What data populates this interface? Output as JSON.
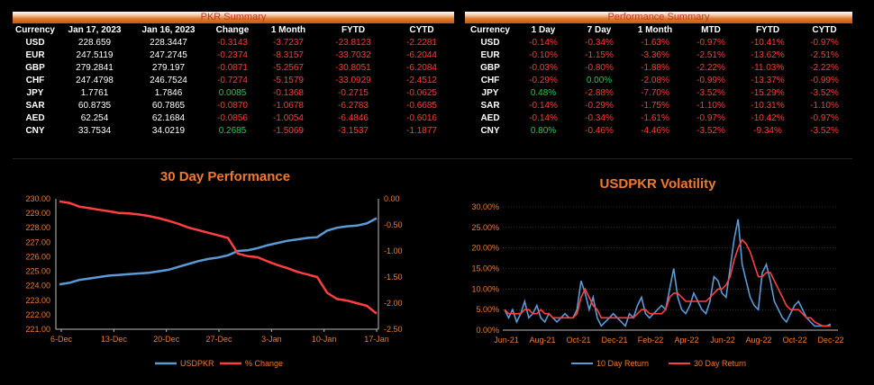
{
  "pkr_summary": {
    "title": "PKR Summary",
    "headers": [
      "Currency",
      "Jan 17, 2023",
      "Jan 16, 2023",
      "Change",
      "1 Month",
      "FYTD",
      "CYTD"
    ],
    "rows": [
      {
        "currency": "USD",
        "jan17": "228.659",
        "jan16": "228.3447",
        "change": "-0.3143",
        "m1": "-3.7237",
        "fytd": "-23.8123",
        "cytd": "-2.2281"
      },
      {
        "currency": "EUR",
        "jan17": "247.5119",
        "jan16": "247.2745",
        "change": "-0.2374",
        "m1": "-8.3157",
        "fytd": "-33.7032",
        "cytd": "-6.2044"
      },
      {
        "currency": "GBP",
        "jan17": "279.2841",
        "jan16": "279.197",
        "change": "-0.0871",
        "m1": "-5.2567",
        "fytd": "-30.8051",
        "cytd": "-6.2084"
      },
      {
        "currency": "CHF",
        "jan17": "247.4798",
        "jan16": "246.7524",
        "change": "-0.7274",
        "m1": "-5.1579",
        "fytd": "-33.0929",
        "cytd": "-2.4512"
      },
      {
        "currency": "JPY",
        "jan17": "1.7761",
        "jan16": "1.7846",
        "change": "0.0085",
        "m1": "-0.1368",
        "fytd": "-0.2715",
        "cytd": "-0.0625"
      },
      {
        "currency": "SAR",
        "jan17": "60.8735",
        "jan16": "60.7865",
        "change": "-0.0870",
        "m1": "-1.0678",
        "fytd": "-6.2783",
        "cytd": "-0.6685"
      },
      {
        "currency": "AED",
        "jan17": "62.254",
        "jan16": "62.1684",
        "change": "-0.0856",
        "m1": "-1.0054",
        "fytd": "-6.4846",
        "cytd": "-0.6016"
      },
      {
        "currency": "CNY",
        "jan17": "33.7534",
        "jan16": "34.0219",
        "change": "0.2685",
        "m1": "-1.5069",
        "fytd": "-3.1537",
        "cytd": "-1.1877"
      }
    ]
  },
  "performance_summary": {
    "title": "Performance Summary",
    "headers": [
      "Currency",
      "1 Day",
      "7 Day",
      "1 Month",
      "MTD",
      "FYTD",
      "CYTD"
    ],
    "rows": [
      {
        "currency": "USD",
        "d1": "-0.14%",
        "d7": "-0.34%",
        "m1": "-1.63%",
        "mtd": "-0.97%",
        "fytd": "-10.41%",
        "cytd": "-0.97%"
      },
      {
        "currency": "EUR",
        "d1": "-0.10%",
        "d7": "-1.15%",
        "m1": "-3.36%",
        "mtd": "-2.51%",
        "fytd": "-13.62%",
        "cytd": "-2.51%"
      },
      {
        "currency": "GBP",
        "d1": "-0.03%",
        "d7": "-0.80%",
        "m1": "-1.88%",
        "mtd": "-2.22%",
        "fytd": "-11.03%",
        "cytd": "-2.22%"
      },
      {
        "currency": "CHF",
        "d1": "-0.29%",
        "d7": "0.00%",
        "m1": "-2.08%",
        "mtd": "-0.99%",
        "fytd": "-13.37%",
        "cytd": "-0.99%"
      },
      {
        "currency": "JPY",
        "d1": "0.48%",
        "d7": "-2.88%",
        "m1": "-7.70%",
        "mtd": "-3.52%",
        "fytd": "-15.29%",
        "cytd": "-3.52%"
      },
      {
        "currency": "SAR",
        "d1": "-0.14%",
        "d7": "-0.29%",
        "m1": "-1.75%",
        "mtd": "-1.10%",
        "fytd": "-10.31%",
        "cytd": "-1.10%"
      },
      {
        "currency": "AED",
        "d1": "-0.14%",
        "d7": "-0.34%",
        "m1": "-1.61%",
        "mtd": "-0.97%",
        "fytd": "-10.42%",
        "cytd": "-0.97%"
      },
      {
        "currency": "CNY",
        "d1": "0.80%",
        "d7": "-0.46%",
        "m1": "-4.46%",
        "mtd": "-3.52%",
        "fytd": "-9.34%",
        "cytd": "-3.52%"
      }
    ]
  },
  "colors": {
    "positive": "#27c93f",
    "negative": "#ff3b30",
    "accent": "#f07a2c",
    "blue": "#5b9bd5",
    "red": "#ff4040"
  },
  "chart_data": [
    {
      "type": "line",
      "title": "30 Day Performance",
      "x_ticks": [
        "6-Dec",
        "13-Dec",
        "20-Dec",
        "27-Dec",
        "3-Jan",
        "10-Jan",
        "17-Jan"
      ],
      "y_left": {
        "min": 221.0,
        "max": 230.0,
        "step": 1.0,
        "ticks": [
          "221.00",
          "222.00",
          "223.00",
          "224.00",
          "225.00",
          "226.00",
          "227.00",
          "228.00",
          "229.00",
          "230.00"
        ]
      },
      "y_right": {
        "min": -2.5,
        "max": 0.0,
        "step": 0.5,
        "ticks": [
          "-2.50",
          "-2.00",
          "-1.50",
          "-1.00",
          "-0.50",
          "0.00"
        ]
      },
      "legend_position": "bottom",
      "series": [
        {
          "name": "USDPKR",
          "axis": "left",
          "color": "#5b9bd5",
          "values": [
            224.1,
            224.2,
            224.4,
            224.5,
            224.6,
            224.7,
            224.75,
            224.8,
            224.85,
            224.9,
            225.0,
            225.1,
            225.3,
            225.5,
            225.7,
            225.85,
            225.95,
            226.1,
            226.4,
            226.45,
            226.6,
            226.8,
            226.95,
            227.1,
            227.2,
            227.3,
            227.35,
            227.8,
            228.0,
            228.1,
            228.15,
            228.3,
            228.66
          ]
        },
        {
          "name": "% Change",
          "axis": "right",
          "color": "#ff4040",
          "values": [
            -0.05,
            -0.08,
            -0.15,
            -0.18,
            -0.21,
            -0.24,
            -0.27,
            -0.28,
            -0.3,
            -0.33,
            -0.37,
            -0.42,
            -0.48,
            -0.55,
            -0.6,
            -0.65,
            -0.7,
            -0.75,
            -1.05,
            -1.1,
            -1.12,
            -1.2,
            -1.27,
            -1.33,
            -1.4,
            -1.45,
            -1.5,
            -1.8,
            -1.92,
            -1.95,
            -2.0,
            -2.05,
            -2.2
          ]
        }
      ]
    },
    {
      "type": "line",
      "title": "USDPKR Volatility",
      "x_ticks": [
        "Jun-21",
        "Aug-21",
        "Oct-21",
        "Dec-21",
        "Feb-22",
        "Apr-22",
        "Jun-22",
        "Aug-22",
        "Oct-22",
        "Dec-22"
      ],
      "y": {
        "min": 0,
        "max": 30,
        "step": 5,
        "ticks": [
          "0.00%",
          "5.00%",
          "10.00%",
          "15.00%",
          "20.00%",
          "25.00%",
          "30.00%"
        ]
      },
      "legend_position": "bottom",
      "series": [
        {
          "name": "10 Day Return",
          "color": "#5b9bd5",
          "values": [
            5,
            3,
            5,
            2,
            4,
            7,
            3,
            4,
            6,
            3,
            2,
            4,
            3,
            2,
            3,
            4,
            3,
            3,
            5,
            12,
            9,
            5,
            8,
            3,
            1,
            2,
            3,
            4,
            3,
            2,
            1,
            4,
            3,
            6,
            8,
            4,
            3,
            4,
            5,
            6,
            5,
            10,
            15,
            8,
            5,
            4,
            6,
            9,
            7,
            5,
            4,
            7,
            13,
            12,
            9,
            8,
            15,
            22,
            27,
            16,
            12,
            8,
            6,
            5,
            14,
            16,
            12,
            7,
            5,
            3,
            2,
            4,
            6,
            7,
            5,
            3,
            2,
            1,
            1,
            1,
            1,
            1.5
          ]
        },
        {
          "name": "30 Day Return",
          "color": "#ff4040",
          "values": [
            5,
            4,
            4,
            4,
            4,
            5,
            5,
            4,
            4,
            5,
            4,
            4,
            3,
            3,
            3,
            3,
            3,
            3,
            4,
            8,
            10,
            8,
            6,
            5,
            3,
            3,
            3,
            3,
            3,
            3,
            3,
            3,
            3,
            4,
            5,
            5,
            4,
            4,
            4,
            4,
            5,
            8,
            9,
            9,
            8,
            7,
            7,
            7,
            7,
            7,
            7,
            8,
            9,
            10,
            10,
            11,
            13,
            17,
            20,
            22,
            21,
            19,
            16,
            13,
            13,
            14,
            14,
            12,
            10,
            8,
            6,
            5,
            5,
            5,
            4,
            3,
            3,
            2,
            1.5,
            1,
            1,
            1
          ]
        }
      ]
    }
  ]
}
